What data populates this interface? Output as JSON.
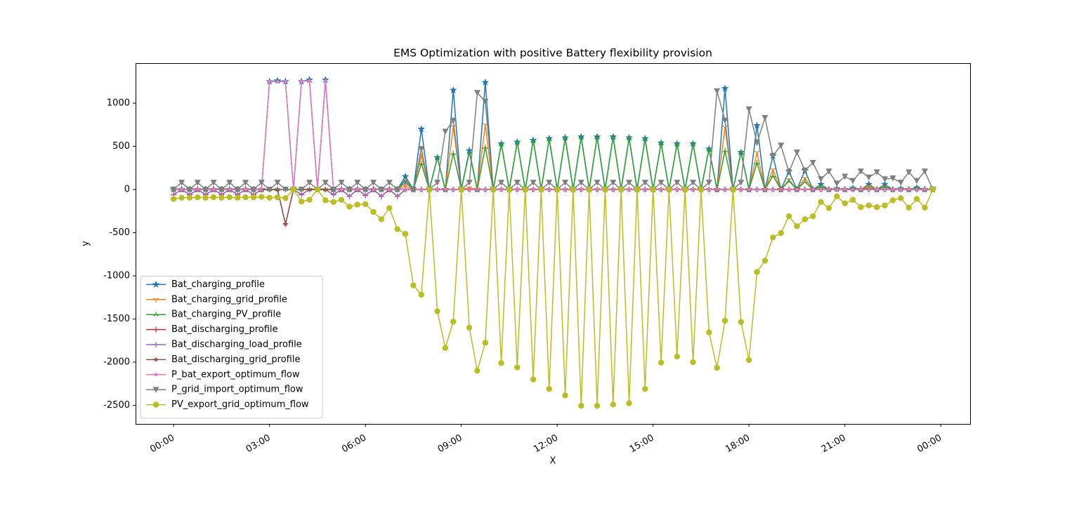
{
  "chart_data": {
    "type": "line",
    "title": "EMS Optimization with positive Battery flexibility provision",
    "x_label": "X",
    "y_label": "y",
    "x": [
      0,
      0.25,
      0.5,
      0.75,
      1,
      1.25,
      1.5,
      1.75,
      2,
      2.25,
      2.5,
      2.75,
      3,
      3.25,
      3.5,
      3.75,
      4,
      4.25,
      4.5,
      4.75,
      5,
      5.25,
      5.5,
      5.75,
      6,
      6.25,
      6.5,
      6.75,
      7,
      7.25,
      7.5,
      7.75,
      8,
      8.25,
      8.5,
      8.75,
      9,
      9.25,
      9.5,
      9.75,
      10,
      10.25,
      10.5,
      10.75,
      11,
      11.25,
      11.5,
      11.75,
      12,
      12.25,
      12.5,
      12.75,
      13,
      13.25,
      13.5,
      13.75,
      14,
      14.25,
      14.5,
      14.75,
      15,
      15.25,
      15.5,
      15.75,
      16,
      16.25,
      16.5,
      16.75,
      17,
      17.25,
      17.5,
      17.75,
      18,
      18.25,
      18.5,
      18.75,
      19,
      19.25,
      19.5,
      19.75,
      20,
      20.25,
      20.5,
      20.75,
      21,
      21.25,
      21.5,
      21.75,
      22,
      22.25,
      22.5,
      22.75,
      23,
      23.25,
      23.5,
      23.75
    ],
    "xlim": [
      -1.19,
      24.94
    ],
    "xticks": [
      {
        "value": 0,
        "label": "00:00"
      },
      {
        "value": 3,
        "label": "03:00"
      },
      {
        "value": 6,
        "label": "06:00"
      },
      {
        "value": 9,
        "label": "09:00"
      },
      {
        "value": 12,
        "label": "12:00"
      },
      {
        "value": 15,
        "label": "15:00"
      },
      {
        "value": 18,
        "label": "18:00"
      },
      {
        "value": 21,
        "label": "21:00"
      },
      {
        "value": 24,
        "label": "00:00"
      }
    ],
    "ylim": [
      -2715,
      1463
    ],
    "yticks": [
      -2500,
      -2000,
      -1500,
      -1000,
      -500,
      0,
      500,
      1000
    ],
    "legend": "lower left",
    "series": [
      {
        "name": "Bat_charging_profile",
        "color": "#1f77b4",
        "marker": "star",
        "values": [
          0,
          0,
          0,
          0,
          0,
          0,
          0,
          0,
          0,
          0,
          0,
          0,
          1250,
          1260,
          1250,
          0,
          1250,
          1270,
          0,
          1270,
          0,
          0,
          0,
          0,
          0,
          0,
          0,
          0,
          0,
          150,
          0,
          700,
          0,
          370,
          0,
          1150,
          0,
          450,
          0,
          1240,
          0,
          530,
          0,
          550,
          0,
          570,
          0,
          590,
          0,
          600,
          0,
          610,
          0,
          610,
          0,
          610,
          0,
          600,
          0,
          590,
          0,
          540,
          0,
          530,
          0,
          530,
          0,
          470,
          0,
          1170,
          0,
          430,
          0,
          740,
          0,
          390,
          0,
          210,
          0,
          220,
          0,
          60,
          0,
          10,
          0,
          15,
          0,
          60,
          0,
          60,
          0,
          10,
          0,
          20,
          0,
          0
        ]
      },
      {
        "name": "Bat_charging_grid_profile",
        "color": "#ff7f0e",
        "marker": "tri_down",
        "values": [
          0,
          0,
          0,
          0,
          0,
          0,
          0,
          0,
          0,
          0,
          0,
          0,
          0,
          0,
          0,
          0,
          0,
          0,
          0,
          0,
          0,
          0,
          0,
          0,
          0,
          0,
          0,
          0,
          0,
          40,
          0,
          400,
          0,
          0,
          0,
          730,
          0,
          20,
          0,
          750,
          0,
          0,
          0,
          0,
          0,
          0,
          0,
          0,
          0,
          0,
          0,
          0,
          0,
          0,
          0,
          0,
          0,
          0,
          0,
          0,
          0,
          0,
          0,
          0,
          0,
          0,
          0,
          0,
          0,
          720,
          0,
          0,
          0,
          430,
          0,
          230,
          0,
          110,
          0,
          130,
          0,
          30,
          0,
          0,
          0,
          0,
          0,
          40,
          0,
          30,
          0,
          0,
          0,
          0,
          0,
          0
        ]
      },
      {
        "name": "Bat_charging_PV_profile",
        "color": "#2ca02c",
        "marker": "tri_up",
        "values": [
          0,
          0,
          0,
          0,
          0,
          0,
          0,
          0,
          0,
          0,
          0,
          0,
          0,
          0,
          0,
          0,
          0,
          0,
          0,
          0,
          0,
          0,
          0,
          0,
          0,
          0,
          0,
          0,
          0,
          110,
          0,
          300,
          0,
          370,
          0,
          420,
          0,
          430,
          0,
          490,
          0,
          530,
          0,
          550,
          0,
          570,
          0,
          590,
          0,
          600,
          0,
          610,
          0,
          610,
          0,
          610,
          0,
          600,
          0,
          590,
          0,
          540,
          0,
          530,
          0,
          530,
          0,
          470,
          0,
          450,
          0,
          430,
          0,
          310,
          0,
          160,
          0,
          100,
          0,
          90,
          0,
          30,
          0,
          10,
          0,
          15,
          0,
          20,
          0,
          30,
          0,
          10,
          0,
          20,
          0,
          0
        ]
      },
      {
        "name": "Bat_discharging_profile",
        "color": "#d62728",
        "marker": "plus",
        "values": [
          -60,
          0,
          -60,
          0,
          -60,
          0,
          -60,
          0,
          -60,
          0,
          -60,
          0,
          0,
          0,
          -400,
          0,
          -60,
          0,
          0,
          0,
          -60,
          0,
          -80,
          0,
          -70,
          0,
          -80,
          0,
          -80,
          0,
          0,
          0,
          0,
          0,
          0,
          0,
          0,
          0,
          0,
          0,
          0,
          0,
          0,
          0,
          0,
          0,
          0,
          0,
          0,
          0,
          0,
          0,
          0,
          0,
          0,
          0,
          0,
          0,
          0,
          0,
          0,
          0,
          0,
          0,
          0,
          0,
          0,
          0,
          0,
          0,
          0,
          0,
          0,
          0,
          0,
          0,
          0,
          0,
          0,
          0,
          0,
          0,
          0,
          0,
          0,
          0,
          0,
          0,
          0,
          0,
          0,
          0,
          0,
          0,
          0,
          0
        ]
      },
      {
        "name": "Bat_discharging_load_profile",
        "color": "#9467bd",
        "marker": "vline",
        "values": [
          -60,
          0,
          -60,
          0,
          -60,
          0,
          -60,
          0,
          -60,
          0,
          -60,
          0,
          0,
          0,
          0,
          0,
          -60,
          0,
          0,
          0,
          -60,
          0,
          -80,
          0,
          -70,
          0,
          -80,
          0,
          -80,
          0,
          0,
          0,
          0,
          0,
          0,
          0,
          0,
          0,
          0,
          0,
          0,
          0,
          0,
          0,
          0,
          0,
          0,
          0,
          0,
          0,
          0,
          0,
          0,
          0,
          0,
          0,
          0,
          0,
          0,
          0,
          0,
          0,
          0,
          0,
          0,
          0,
          0,
          0,
          0,
          0,
          0,
          0,
          0,
          0,
          0,
          0,
          0,
          0,
          0,
          0,
          0,
          0,
          0,
          0,
          0,
          0,
          0,
          0,
          0,
          0,
          0,
          0,
          0,
          0,
          0,
          0
        ]
      },
      {
        "name": "Bat_discharging_grid_profile",
        "color": "#8c564b",
        "marker": "smallstar",
        "values": [
          0,
          0,
          0,
          0,
          0,
          0,
          0,
          0,
          0,
          0,
          0,
          0,
          0,
          0,
          -400,
          0,
          0,
          0,
          0,
          0,
          0,
          0,
          0,
          0,
          0,
          0,
          0,
          0,
          0,
          0,
          0,
          0,
          0,
          0,
          0,
          0,
          0,
          0,
          0,
          0,
          0,
          0,
          0,
          0,
          0,
          0,
          0,
          0,
          0,
          0,
          0,
          0,
          0,
          0,
          0,
          0,
          0,
          0,
          0,
          0,
          0,
          0,
          0,
          0,
          0,
          0,
          0,
          0,
          0,
          0,
          0,
          0,
          0,
          0,
          0,
          0,
          0,
          0,
          0,
          0,
          0,
          0,
          0,
          0,
          0,
          0,
          0,
          0,
          0,
          0,
          0,
          0,
          0,
          0,
          0,
          0
        ]
      },
      {
        "name": "P_bat_export_optimum_flow",
        "color": "#e377c2",
        "marker": "point",
        "values": [
          0,
          0,
          0,
          0,
          0,
          0,
          0,
          0,
          0,
          0,
          0,
          0,
          1250,
          1250,
          1250,
          0,
          1250,
          1260,
          0,
          1260,
          0,
          0,
          0,
          0,
          0,
          0,
          0,
          0,
          0,
          0,
          0,
          0,
          0,
          0,
          0,
          0,
          0,
          0,
          0,
          0,
          0,
          0,
          0,
          0,
          0,
          0,
          0,
          0,
          0,
          0,
          0,
          0,
          0,
          0,
          0,
          0,
          0,
          0,
          0,
          0,
          0,
          0,
          0,
          0,
          0,
          0,
          0,
          0,
          0,
          0,
          0,
          0,
          0,
          0,
          0,
          0,
          0,
          0,
          0,
          0,
          0,
          0,
          0,
          0,
          0,
          0,
          0,
          0,
          0,
          0,
          0,
          0,
          0,
          0,
          0,
          0
        ]
      },
      {
        "name": "P_grid_import_optimum_flow",
        "color": "#7f7f7f",
        "marker": "triangle_down",
        "values": [
          0,
          80,
          0,
          80,
          0,
          80,
          0,
          80,
          0,
          80,
          0,
          80,
          0,
          80,
          0,
          0,
          0,
          80,
          0,
          80,
          0,
          80,
          0,
          80,
          0,
          80,
          0,
          80,
          0,
          80,
          0,
          470,
          0,
          80,
          670,
          800,
          0,
          80,
          1120,
          1020,
          0,
          80,
          0,
          80,
          0,
          80,
          0,
          80,
          0,
          80,
          0,
          80,
          0,
          80,
          0,
          80,
          0,
          80,
          0,
          80,
          0,
          80,
          0,
          80,
          0,
          80,
          0,
          80,
          1140,
          800,
          0,
          80,
          930,
          540,
          830,
          390,
          510,
          200,
          430,
          220,
          310,
          120,
          210,
          70,
          150,
          100,
          210,
          140,
          200,
          120,
          130,
          80,
          200,
          100,
          210,
          0
        ]
      },
      {
        "name": "PV_export_grid_optimum_flow",
        "color": "#bcbd22",
        "marker": "circle",
        "values": [
          -110,
          -95,
          -95,
          -90,
          -95,
          -90,
          -95,
          -90,
          -95,
          -90,
          -90,
          -85,
          -95,
          -90,
          -100,
          0,
          -140,
          -120,
          0,
          -125,
          -145,
          -120,
          -200,
          -175,
          -170,
          -260,
          -345,
          -215,
          -460,
          -515,
          -1110,
          -1220,
          0,
          -1410,
          -1835,
          -1530,
          0,
          -1600,
          -2100,
          -1775,
          0,
          -2010,
          0,
          -2060,
          0,
          -2200,
          0,
          -2310,
          0,
          -2385,
          0,
          -2505,
          0,
          -2505,
          0,
          -2490,
          0,
          -2475,
          0,
          -2310,
          0,
          -2005,
          0,
          -1935,
          0,
          -2000,
          0,
          -1655,
          -2065,
          -1520,
          0,
          -1535,
          -1975,
          -955,
          -825,
          -555,
          -505,
          -310,
          -425,
          -345,
          -310,
          -145,
          -215,
          -80,
          -160,
          -120,
          -205,
          -185,
          -205,
          -185,
          -125,
          -100,
          -210,
          -110,
          -210,
          0
        ]
      }
    ]
  }
}
